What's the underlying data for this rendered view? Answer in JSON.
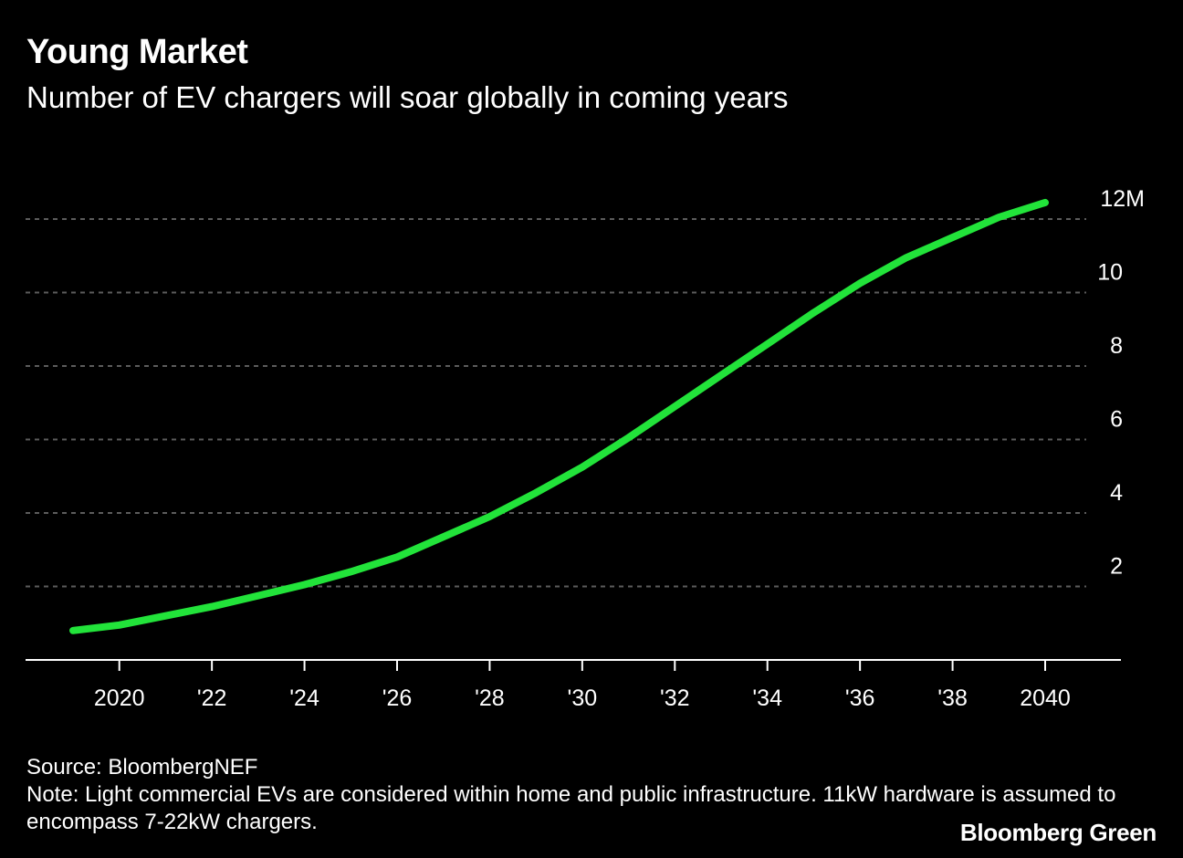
{
  "header": {
    "title": "Young Market",
    "subtitle": "Number of EV chargers will soar globally in coming years"
  },
  "footer": {
    "source": "Source: BloombergNEF",
    "note": "Note: Light commercial EVs are considered within home and public infrastructure. 11kW hardware is assumed to encompass 7-22kW chargers.",
    "brand": "Bloomberg Green"
  },
  "colors": {
    "background": "#000000",
    "line": "#22e33a",
    "grid": "#5c5c5c",
    "text": "#ffffff"
  },
  "chart_data": {
    "type": "line",
    "title": "Young Market",
    "subtitle": "Number of EV chargers will soar globally in coming years",
    "xlabel": "",
    "ylabel": "",
    "xlim": [
      2019,
      2040
    ],
    "ylim": [
      0,
      12
    ],
    "grid": true,
    "x_ticks": [
      {
        "value": 2020,
        "label": "2020"
      },
      {
        "value": 2022,
        "label": "'22"
      },
      {
        "value": 2024,
        "label": "'24"
      },
      {
        "value": 2026,
        "label": "'26"
      },
      {
        "value": 2028,
        "label": "'28"
      },
      {
        "value": 2030,
        "label": "'30"
      },
      {
        "value": 2032,
        "label": "'32"
      },
      {
        "value": 2034,
        "label": "'34"
      },
      {
        "value": 2036,
        "label": "'36"
      },
      {
        "value": 2038,
        "label": "'38"
      },
      {
        "value": 2040,
        "label": "2040"
      }
    ],
    "y_ticks": [
      {
        "value": 2,
        "label": "2"
      },
      {
        "value": 4,
        "label": "4"
      },
      {
        "value": 6,
        "label": "6"
      },
      {
        "value": 8,
        "label": "8"
      },
      {
        "value": 10,
        "label": "10"
      },
      {
        "value": 12,
        "label": "12M"
      }
    ],
    "series": [
      {
        "name": "EV chargers",
        "x": [
          2019,
          2020,
          2021,
          2022,
          2023,
          2024,
          2025,
          2026,
          2027,
          2028,
          2029,
          2030,
          2031,
          2032,
          2033,
          2034,
          2035,
          2036,
          2037,
          2038,
          2039,
          2040
        ],
        "values": [
          0.8,
          0.95,
          1.2,
          1.45,
          1.75,
          2.05,
          2.4,
          2.8,
          3.35,
          3.9,
          4.55,
          5.25,
          6.05,
          6.9,
          7.75,
          8.6,
          9.45,
          10.25,
          10.95,
          11.5,
          12.05,
          12.45
        ]
      }
    ]
  }
}
